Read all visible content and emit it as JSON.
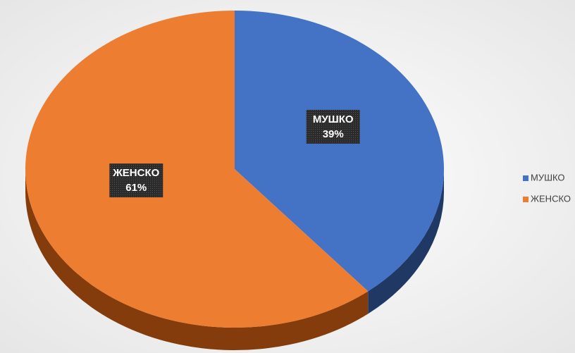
{
  "chart_data": {
    "type": "pie",
    "categories": [
      "МУШКО",
      "ЖЕНСКО"
    ],
    "values": [
      39,
      61
    ],
    "value_labels": [
      "39%",
      "61%"
    ],
    "colors": [
      "#4472c4",
      "#ed7d31"
    ],
    "side_colors": [
      "#1f3864",
      "#843c0c"
    ],
    "legend": "right"
  }
}
